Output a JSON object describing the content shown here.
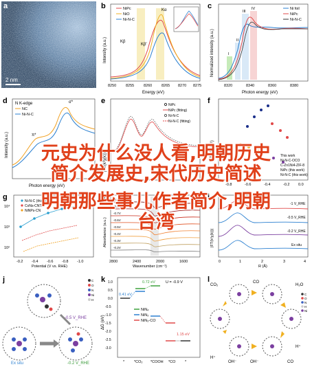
{
  "panel_labels": [
    "a",
    "b",
    "c",
    "d",
    "e",
    "f",
    "g",
    "h",
    "i",
    "j",
    "k",
    "l"
  ],
  "panel_a": {
    "scale_label": "2 nm"
  },
  "panel_b": {
    "ylabel": "Intensity (a.u.)",
    "xlabel": "Energy (eV)",
    "xticks": [
      "8250",
      "8255",
      "8260",
      "8265",
      "8270",
      "8275"
    ],
    "peak_labels": [
      "Kβ",
      "Kβ′",
      "Kα"
    ],
    "legend": [
      "NiPc",
      "NiO",
      "Ni-N-C"
    ],
    "inset_xlabel": "Energy (eV)"
  },
  "panel_c": {
    "ylabel": "Normalized intensity (a.u.)",
    "xlabel": "Photon energy (eV)",
    "xticks": [
      "8320",
      "8340",
      "8360",
      "8380"
    ],
    "region_labels": [
      "I",
      "II",
      "III",
      "IV"
    ],
    "legend": [
      "Ni foil",
      "NiPc",
      "Ni-N-C"
    ]
  },
  "panel_d": {
    "title": "N K-edge",
    "legend": [
      "NC",
      "Ni-N-C"
    ],
    "ylabel": "Intensity (a.u.)",
    "peak_labels": [
      "π*",
      "σ*"
    ],
    "xlabel": "Photon energy (eV)"
  },
  "panel_e": {
    "ylabel": "|FT(k³χ(k))|",
    "legend": [
      "NiPc",
      "NiPc (fitting)",
      "Ni-N-C",
      "Ni-N-C (fitting)"
    ]
  },
  "panel_f": {
    "ylabel": "TOF (s⁻¹)",
    "legend": [
      "This work",
      "Ni-N-C-OCO",
      "C-Zn1Ni4-ZIF-8",
      "NiPc (this work)",
      "Ni-N-C (this work)"
    ],
    "xticks": [
      "-0.8",
      "-0.6",
      "-0.4",
      "-0.2",
      "0.0"
    ]
  },
  "panel_g": {
    "ylabel": "TOF (h⁻¹)",
    "xlabel": "Potential (V vs RHE)",
    "yticks": [
      "10⁴",
      "10³",
      "10²"
    ],
    "xticks": [
      "-0.2",
      "-0.4",
      "-0.6",
      "-0.8",
      "-1.0"
    ],
    "legend": [
      "Ni-N-C (this work)",
      "CoNs-CNTs",
      "NiNPs-CN"
    ]
  },
  "panel_h": {
    "ylabel": "Absorbance (a.u.)",
    "xlabel": "Wavenumber (cm⁻¹)",
    "xticks": [
      "2800",
      "2400",
      "2000",
      "1600"
    ],
    "series": [
      "-0.9V",
      "-0.8V",
      "-0.7V",
      "-0.6V",
      "-0.5V",
      "-0.4V",
      "-0.3V",
      "-0.2V"
    ]
  },
  "panel_i": {
    "ylabel": "|FT(k²χ(k))|",
    "xlabel": "R (Å)",
    "xticks": [
      "0",
      "1",
      "2",
      "3",
      "4"
    ],
    "series": [
      "-1 V_RHE",
      "-0.5 V_RHE",
      "-0.2 V_RHE",
      "Ex situ"
    ]
  },
  "panel_j": {
    "labels": [
      "-0.5 V_RHE",
      "-0.2 V_RHE",
      "Ex situ"
    ],
    "atoms": [
      "C",
      "O",
      "N",
      "Ni",
      "H"
    ]
  },
  "panel_k": {
    "ylabel": "ΔG (eV)",
    "xticks": [
      "*",
      "*CO₂",
      "*COOH",
      "*CO",
      "*"
    ],
    "yticks": [
      "1.0",
      "0.5",
      "0.0",
      "-0.5",
      "-1.0",
      "-1.5",
      "-2.0",
      "-2.5",
      "-3.0"
    ],
    "annotations": [
      "0.41 eV",
      "0.72 eV",
      "U = -0.9 V",
      "1.15 eV"
    ],
    "legend": [
      "NiN₄",
      "NiN₃",
      "NiN₃-CO"
    ]
  },
  "panel_l": {
    "labels": [
      "CO₂",
      "CO",
      "H₂O",
      "H⁺",
      "OH⁻",
      "CO",
      "OH⁻",
      "H⁺"
    ],
    "atoms": [
      "C",
      "O",
      "N",
      "H",
      "Ni"
    ]
  },
  "overlay": {
    "line1": "元史为什么没人看,明朝历史",
    "line2": "简介发展史,宋代历史简述",
    "line3": "明朝那些事儿作者简介,明朝",
    "line4": "台湾"
  }
}
